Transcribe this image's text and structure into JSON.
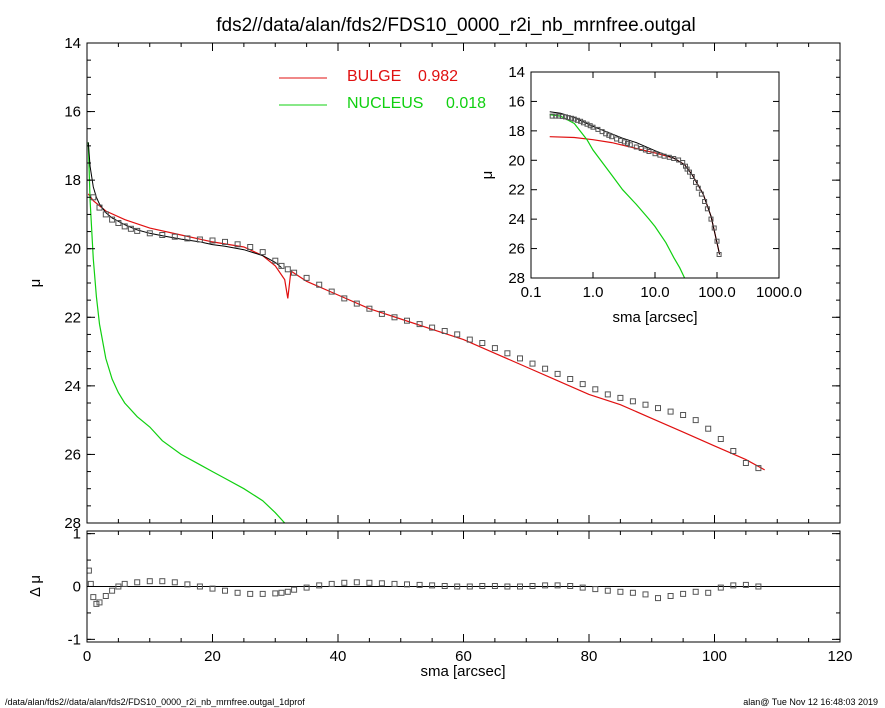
{
  "header": {
    "title": "fds2//data/alan/fds2/FDS10_0000_r2i_nb_mrnfree.outgal"
  },
  "footer": {
    "left": "/data/alan/fds2//data/alan/fds2/FDS10_0000_r2i_nb_mrnfree.outgal_1dprof",
    "right": "alan@  Tue Nov 12 16:48:03 2019"
  },
  "colors": {
    "bulge": "#e01010",
    "nucleus": "#10d010",
    "data": "#555555",
    "total": "#000000"
  },
  "chart_data": [
    {
      "id": "main",
      "type": "line",
      "title": "",
      "xlabel": "",
      "ylabel": "μ",
      "xlim": [
        0,
        120
      ],
      "ylim": [
        28,
        14
      ],
      "y_inverted": true,
      "xticks": [
        "0",
        "20",
        "40",
        "60",
        "80",
        "100",
        "120"
      ],
      "yticks": [
        "14",
        "16",
        "18",
        "20",
        "22",
        "24",
        "26",
        "28"
      ],
      "legend": [
        {
          "name": "BULGE",
          "value": "0.982",
          "color": "#e01010"
        },
        {
          "name": "NUCLEUS",
          "value": "0.018",
          "color": "#10d010"
        }
      ],
      "legend_position": "top-center",
      "series": [
        {
          "name": "BULGE",
          "kind": "line",
          "x": [
            0.2,
            1,
            3,
            6,
            10,
            15,
            20,
            25,
            28,
            30,
            31.5,
            32,
            32.5,
            35,
            40,
            45,
            50,
            55,
            60,
            65,
            70,
            75,
            80,
            85,
            90,
            95,
            100,
            105,
            108
          ],
          "y": [
            18.4,
            18.6,
            18.9,
            19.15,
            19.4,
            19.6,
            19.8,
            19.95,
            20.2,
            20.5,
            20.9,
            21.45,
            20.65,
            20.95,
            21.35,
            21.75,
            22.05,
            22.35,
            22.65,
            23.05,
            23.45,
            23.85,
            24.25,
            24.55,
            24.95,
            25.35,
            25.75,
            26.15,
            26.45
          ]
        },
        {
          "name": "NUCLEUS",
          "kind": "line",
          "x": [
            0.2,
            0.5,
            1,
            1.5,
            2,
            3,
            4,
            5,
            6,
            8,
            10,
            12,
            15,
            18,
            20,
            22,
            25,
            28,
            30,
            31.5
          ],
          "y": [
            16.9,
            18.6,
            20.3,
            21.4,
            22.2,
            23.2,
            23.8,
            24.2,
            24.5,
            24.9,
            25.2,
            25.6,
            26.0,
            26.3,
            26.5,
            26.7,
            27.0,
            27.35,
            27.7,
            28.0
          ]
        },
        {
          "name": "Total model",
          "kind": "line",
          "x": [
            0.2,
            0.5,
            1,
            1.5,
            2,
            3,
            4,
            5,
            6,
            8,
            10,
            12,
            15,
            18,
            20,
            22,
            25,
            28,
            30,
            31
          ],
          "y": [
            16.9,
            17.6,
            18.2,
            18.5,
            18.7,
            18.95,
            19.1,
            19.2,
            19.3,
            19.45,
            19.55,
            19.62,
            19.72,
            19.8,
            19.88,
            19.93,
            20.03,
            20.2,
            20.4,
            20.55
          ]
        },
        {
          "name": "Data",
          "kind": "markers",
          "x": [
            1,
            2,
            3,
            4,
            5,
            6,
            7,
            8,
            10,
            12,
            14,
            16,
            18,
            20,
            22,
            24,
            26,
            28,
            30,
            31,
            32,
            33,
            35,
            37,
            39,
            41,
            43,
            45,
            47,
            49,
            51,
            53,
            55,
            57,
            59,
            61,
            63,
            65,
            67,
            69,
            71,
            73,
            75,
            77,
            79,
            81,
            83,
            85,
            87,
            89,
            91,
            93,
            95,
            97,
            99,
            101,
            103,
            105,
            107
          ],
          "y": [
            18.5,
            18.8,
            19.0,
            19.15,
            19.25,
            19.35,
            19.42,
            19.48,
            19.55,
            19.6,
            19.65,
            19.7,
            19.73,
            19.76,
            19.8,
            19.87,
            19.95,
            20.1,
            20.35,
            20.5,
            20.6,
            20.7,
            20.85,
            21.05,
            21.25,
            21.45,
            21.6,
            21.75,
            21.9,
            22.0,
            22.1,
            22.2,
            22.3,
            22.4,
            22.5,
            22.65,
            22.75,
            22.9,
            23.05,
            23.2,
            23.35,
            23.5,
            23.65,
            23.8,
            23.95,
            24.1,
            24.25,
            24.35,
            24.45,
            24.55,
            24.65,
            24.75,
            24.85,
            25.0,
            25.25,
            25.55,
            25.9,
            26.25,
            26.4
          ]
        }
      ]
    },
    {
      "id": "residuals",
      "type": "scatter",
      "xlabel": "sma [arcsec]",
      "ylabel": "Δ μ",
      "xlim": [
        0,
        120
      ],
      "ylim": [
        -1.05,
        1.05
      ],
      "xticks": [
        "0",
        "20",
        "40",
        "60",
        "80",
        "100",
        "120"
      ],
      "yticks": [
        "1",
        "0",
        "-1"
      ],
      "series": [
        {
          "name": "Residual",
          "kind": "markers",
          "x": [
            0.3,
            0.6,
            1,
            1.5,
            2,
            3,
            4,
            5,
            6,
            8,
            10,
            12,
            14,
            16,
            18,
            20,
            22,
            24,
            26,
            28,
            30,
            31,
            32,
            33,
            35,
            37,
            39,
            41,
            43,
            45,
            47,
            49,
            51,
            53,
            55,
            57,
            59,
            61,
            63,
            65,
            67,
            69,
            71,
            73,
            75,
            77,
            79,
            81,
            83,
            85,
            87,
            89,
            91,
            93,
            95,
            97,
            99,
            101,
            103,
            105,
            107
          ],
          "y": [
            0.3,
            0.05,
            -0.2,
            -0.33,
            -0.3,
            -0.18,
            -0.08,
            0.0,
            0.05,
            0.08,
            0.1,
            0.1,
            0.08,
            0.04,
            0.0,
            -0.04,
            -0.08,
            -0.12,
            -0.14,
            -0.14,
            -0.13,
            -0.12,
            -0.1,
            -0.06,
            -0.02,
            0.02,
            0.05,
            0.07,
            0.08,
            0.07,
            0.06,
            0.05,
            0.04,
            0.03,
            0.02,
            0.01,
            0.0,
            0.0,
            0.01,
            0.01,
            0.0,
            0.0,
            0.01,
            0.02,
            0.02,
            0.01,
            -0.02,
            -0.05,
            -0.08,
            -0.1,
            -0.12,
            -0.15,
            -0.22,
            -0.18,
            -0.14,
            -0.1,
            -0.12,
            -0.02,
            0.02,
            0.03,
            0.0
          ]
        }
      ]
    },
    {
      "id": "inset",
      "type": "line",
      "xlabel": "sma [arcsec]",
      "ylabel": "μ",
      "xscale": "log",
      "xlim": [
        0.1,
        1000
      ],
      "ylim": [
        28,
        14
      ],
      "y_inverted": true,
      "xticks": [
        "0.1",
        "1.0",
        "10.0",
        "100.0",
        "1000.0"
      ],
      "yticks": [
        "14",
        "16",
        "18",
        "20",
        "22",
        "24",
        "26",
        "28"
      ],
      "series": [
        {
          "name": "BULGE",
          "kind": "line",
          "x": [
            0.2,
            0.5,
            1,
            2,
            5,
            10,
            20,
            30,
            40,
            60,
            80,
            100,
            110
          ],
          "y": [
            18.4,
            18.45,
            18.6,
            18.8,
            19.2,
            19.5,
            19.85,
            20.3,
            21.0,
            22.3,
            23.8,
            25.6,
            26.4
          ]
        },
        {
          "name": "NUCLEUS",
          "kind": "line",
          "x": [
            0.2,
            0.3,
            0.5,
            0.8,
            1,
            2,
            3,
            5,
            8,
            10,
            15,
            20,
            25,
            30
          ],
          "y": [
            16.9,
            17.0,
            17.5,
            18.6,
            19.3,
            21.0,
            22.0,
            23.0,
            24.0,
            24.5,
            25.6,
            26.6,
            27.3,
            28.0
          ]
        },
        {
          "name": "Total model",
          "kind": "line",
          "x": [
            0.2,
            0.3,
            0.5,
            0.8,
            1,
            2,
            3,
            5,
            10,
            20,
            30,
            40,
            60,
            80,
            100,
            110
          ],
          "y": [
            16.7,
            16.8,
            17.1,
            17.5,
            17.7,
            18.2,
            18.5,
            18.8,
            19.35,
            19.85,
            20.3,
            21.0,
            22.3,
            23.8,
            25.6,
            26.4
          ]
        },
        {
          "name": "Data",
          "kind": "markers",
          "x": [
            0.22,
            0.25,
            0.28,
            0.32,
            0.36,
            0.4,
            0.45,
            0.5,
            0.56,
            0.63,
            0.7,
            0.8,
            0.9,
            1.0,
            1.2,
            1.4,
            1.6,
            1.8,
            2.0,
            2.4,
            2.8,
            3.2,
            3.6,
            4.0,
            5.0,
            6.0,
            7.0,
            8.0,
            10,
            12,
            14,
            17,
            20,
            24,
            28,
            31,
            33,
            36,
            40,
            45,
            50,
            56,
            63,
            70,
            80,
            90,
            100,
            108
          ],
          "y": [
            17.0,
            17.0,
            17.0,
            17.02,
            17.05,
            17.1,
            17.15,
            17.2,
            17.28,
            17.35,
            17.45,
            17.55,
            17.65,
            17.75,
            17.9,
            18.05,
            18.2,
            18.3,
            18.4,
            18.55,
            18.65,
            18.75,
            18.85,
            18.95,
            19.1,
            19.2,
            19.3,
            19.4,
            19.55,
            19.65,
            19.72,
            19.8,
            19.88,
            19.98,
            20.15,
            20.4,
            20.6,
            20.8,
            21.1,
            21.5,
            21.9,
            22.3,
            22.8,
            23.3,
            24.0,
            24.6,
            25.5,
            26.4
          ]
        }
      ]
    }
  ]
}
